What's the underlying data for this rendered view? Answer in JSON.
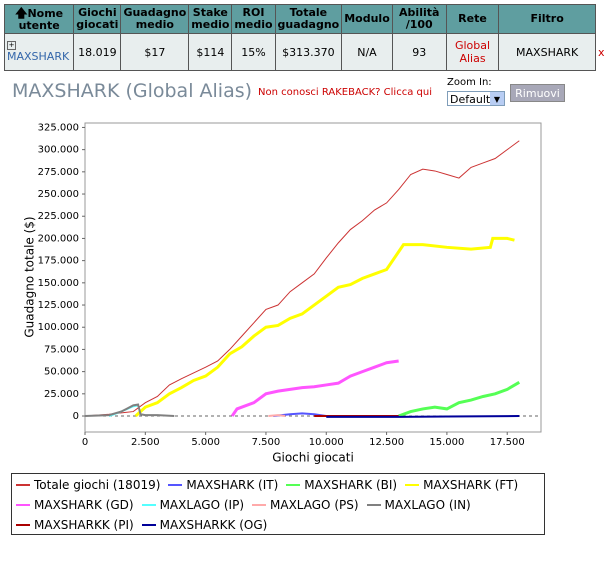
{
  "table": {
    "columns": [
      "Nome utente",
      "Giochi giocati",
      "Guadagno medio",
      "Stake medio",
      "ROI medio",
      "Totale guadagno",
      "Modulo",
      "Abilità /100",
      "Rete",
      "Filtro"
    ],
    "rows": [
      [
        "MAXSHARK",
        "18.019",
        "$17",
        "$114",
        "15%",
        "$313.370",
        "N/A",
        "93",
        "Global Alias",
        "MAXSHARK"
      ]
    ],
    "remove_label": "x"
  },
  "header": {
    "title": "MAXSHARK (Global Alias)",
    "rakeback_link": "Non conosci RAKEBACK? Clicca qui",
    "zoom_label": "Zoom In:",
    "zoom_option": "Default",
    "remove_button": "Rimuovi"
  },
  "chart_data": {
    "type": "line",
    "x_label": "Giochi giocati",
    "y_label": "Guadagno totale  ($)",
    "xlim": [
      0,
      18900
    ],
    "ylim": [
      -18000,
      330000
    ],
    "xticks": [
      0,
      {
        "value": 2500,
        "label": "2.500"
      },
      {
        "value": 5000,
        "label": "5.000"
      },
      {
        "value": 7500,
        "label": "7.500"
      },
      {
        "value": 10000,
        "label": "10.000"
      },
      {
        "value": 12500,
        "label": "12.500"
      },
      {
        "value": 15000,
        "label": "15.000"
      },
      {
        "value": 17500,
        "label": "17.500"
      }
    ],
    "yticks": [
      0,
      {
        "value": 25000,
        "label": "25.000"
      },
      {
        "value": 50000,
        "label": "50.000"
      },
      {
        "value": 75000,
        "label": "75.000"
      },
      {
        "value": 100000,
        "label": "100.000"
      },
      {
        "value": 125000,
        "label": "125.000"
      },
      {
        "value": 150000,
        "label": "150.000"
      },
      {
        "value": 175000,
        "label": "175.000"
      },
      {
        "value": 200000,
        "label": "200.000"
      },
      {
        "value": 225000,
        "label": "225.000"
      },
      {
        "value": 250000,
        "label": "250.000"
      },
      {
        "value": 275000,
        "label": "275.000"
      },
      {
        "value": 300000,
        "label": "300.000"
      },
      {
        "value": 325000,
        "label": "325.000"
      }
    ],
    "zero_line": true,
    "legend": "bottom",
    "series": [
      {
        "name": "Totale giochi  (18019)",
        "color": "#cc3333",
        "width": 1,
        "x": [
          0,
          1000,
          2000,
          2500,
          3000,
          3500,
          4000,
          5000,
          5500,
          6000,
          6500,
          7000,
          7500,
          8000,
          8500,
          9000,
          9500,
          10000,
          10500,
          11000,
          11500,
          12000,
          12500,
          13000,
          13500,
          14000,
          14500,
          15000,
          15500,
          16000,
          16500,
          17000,
          17500,
          18000
        ],
        "values": [
          0,
          2000,
          5000,
          15000,
          22000,
          35000,
          42000,
          55000,
          62000,
          75000,
          90000,
          105000,
          120000,
          125000,
          140000,
          150000,
          160000,
          178000,
          195000,
          210000,
          220000,
          232000,
          240000,
          255000,
          272000,
          278000,
          276000,
          272000,
          268000,
          280000,
          285000,
          290000,
          300000,
          310000
        ]
      },
      {
        "name": "MAXSHARK (IT)",
        "color": "#5555ff",
        "width": 2,
        "x": [
          7800,
          8500,
          9000,
          9500,
          10000
        ],
        "values": [
          0,
          2000,
          3000,
          2000,
          0
        ]
      },
      {
        "name": "MAXSHARK (BI)",
        "color": "#55ff55",
        "width": 3,
        "x": [
          13000,
          13500,
          14000,
          14500,
          15000,
          15500,
          16000,
          16500,
          17000,
          17500,
          18000
        ],
        "values": [
          0,
          5000,
          8000,
          10000,
          8000,
          15000,
          18000,
          22000,
          25000,
          30000,
          38000
        ]
      },
      {
        "name": "MAXSHARK (FT)",
        "color": "#ffff00",
        "width": 3,
        "x": [
          2100,
          2500,
          3000,
          3500,
          4000,
          4500,
          5000,
          5500,
          6000,
          6500,
          7000,
          7500,
          8000,
          8500,
          9000,
          9500,
          10000,
          10500,
          11000,
          11500,
          12000,
          12500,
          13000,
          13200,
          14000,
          15000,
          16000,
          16800,
          16900,
          17500,
          17800
        ],
        "values": [
          0,
          10000,
          15000,
          25000,
          32000,
          40000,
          45000,
          55000,
          70000,
          78000,
          90000,
          100000,
          102000,
          110000,
          115000,
          125000,
          135000,
          145000,
          148000,
          155000,
          160000,
          165000,
          185000,
          193000,
          193000,
          190000,
          188000,
          190000,
          200000,
          200000,
          198000
        ]
      },
      {
        "name": "MAXSHARK (GD)",
        "color": "#ff55ff",
        "width": 3,
        "x": [
          6100,
          6300,
          7000,
          7500,
          8000,
          8500,
          9000,
          9500,
          10000,
          10500,
          11000,
          11500,
          12000,
          12500,
          13000
        ],
        "values": [
          0,
          8000,
          15000,
          25000,
          28000,
          30000,
          32000,
          33000,
          35000,
          37000,
          45000,
          50000,
          55000,
          60000,
          62000
        ]
      },
      {
        "name": "MAXLAGO (IP)",
        "color": "#55ffff",
        "width": 2,
        "x": [
          1000,
          1500,
          2000,
          2200
        ],
        "values": [
          0,
          5000,
          11000,
          12000
        ]
      },
      {
        "name": "MAXLAGO (PS)",
        "color": "#ffaaaa",
        "width": 2,
        "x": [
          7600,
          8000,
          8300
        ],
        "values": [
          0,
          1000,
          0
        ]
      },
      {
        "name": "MAXLAGO (IN)",
        "color": "#808080",
        "width": 2,
        "x": [
          0,
          1000,
          1500,
          2000,
          2200,
          2300,
          2500,
          3000,
          3700
        ],
        "values": [
          0,
          1000,
          5000,
          12000,
          13000,
          2000,
          1000,
          1000,
          0
        ]
      },
      {
        "name": "MAXSHARKK (PI)",
        "color": "#aa0000",
        "width": 2,
        "x": [
          9500,
          13000
        ],
        "values": [
          0,
          0
        ]
      },
      {
        "name": "MAXSHARKK (OG)",
        "color": "#000099",
        "width": 2,
        "x": [
          10000,
          13000,
          15000,
          18000
        ],
        "values": [
          -1000,
          -1000,
          -500,
          0
        ]
      }
    ]
  }
}
